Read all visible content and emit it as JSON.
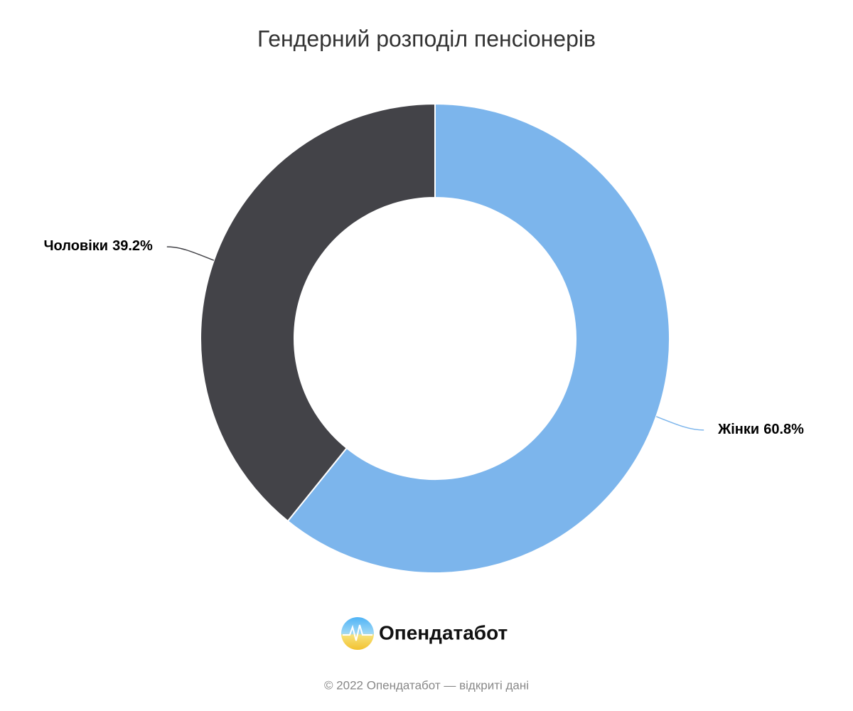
{
  "chart_data": {
    "type": "donut",
    "title": "Гендерний розподіл пенсіонерів",
    "categories": [
      "Жінки",
      "Чоловіки"
    ],
    "values": [
      60.8,
      39.2
    ],
    "value_labels": [
      "60.8%",
      "39.2%"
    ],
    "colors": [
      "#7cb5ec",
      "#434348"
    ]
  },
  "footer": {
    "logo": "Опендатабот",
    "credits": "© 2022 Опендатабот — відкриті дані"
  }
}
